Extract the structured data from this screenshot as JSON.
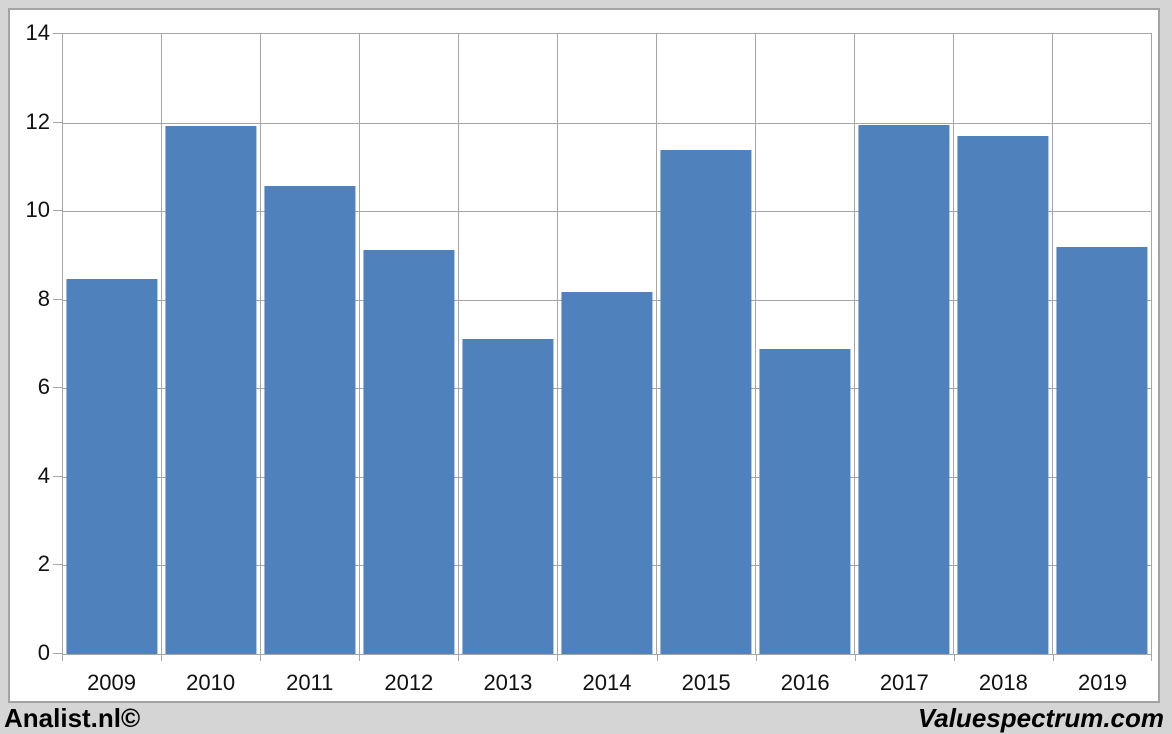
{
  "chart_data": {
    "type": "bar",
    "title": "",
    "xlabel": "",
    "ylabel": "",
    "categories": [
      "2009",
      "2010",
      "2011",
      "2012",
      "2013",
      "2014",
      "2015",
      "2016",
      "2017",
      "2018",
      "2019"
    ],
    "values": [
      8.47,
      11.93,
      10.57,
      9.13,
      7.12,
      8.18,
      11.39,
      6.89,
      11.95,
      11.7,
      9.18
    ],
    "ylim": [
      0,
      14
    ],
    "yticks": [
      0,
      2,
      4,
      6,
      8,
      10,
      12,
      14
    ],
    "grid": true,
    "legend_position": "none"
  },
  "footer": {
    "left_text": "Analist.nl©",
    "right_text": "Valuespectrum.com"
  },
  "colors": {
    "background": "#d5d5d5",
    "plot_background": "#ffffff",
    "bar": "#4f81bd",
    "grid": "#a6a6a6",
    "frame": "#a3a3a3",
    "text": "#111111"
  }
}
